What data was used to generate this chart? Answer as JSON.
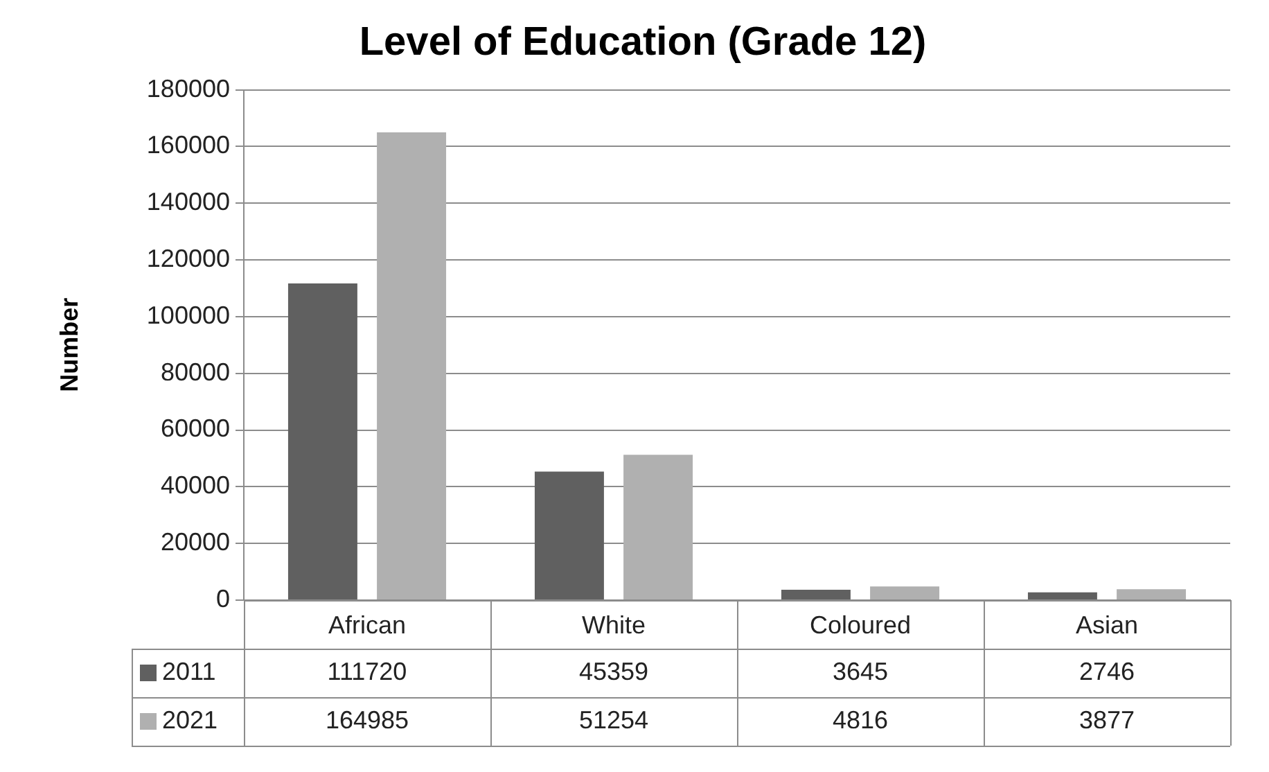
{
  "chart_data": {
    "type": "bar",
    "title": "Level of Education (Grade 12)",
    "ylabel": "Number",
    "categories": [
      "African",
      "White",
      "Coloured",
      "Asian"
    ],
    "series": [
      {
        "name": "2011",
        "color": "#606060",
        "values": [
          111720,
          45359,
          3645,
          2746
        ]
      },
      {
        "name": "2021",
        "color": "#b0b0b0",
        "values": [
          164985,
          51254,
          4816,
          3877
        ]
      }
    ],
    "ylim": [
      0,
      180000
    ],
    "yticks": [
      0,
      20000,
      40000,
      60000,
      80000,
      100000,
      120000,
      140000,
      160000,
      180000
    ],
    "grid": "y",
    "legend": "bottom",
    "data_labels": true
  }
}
